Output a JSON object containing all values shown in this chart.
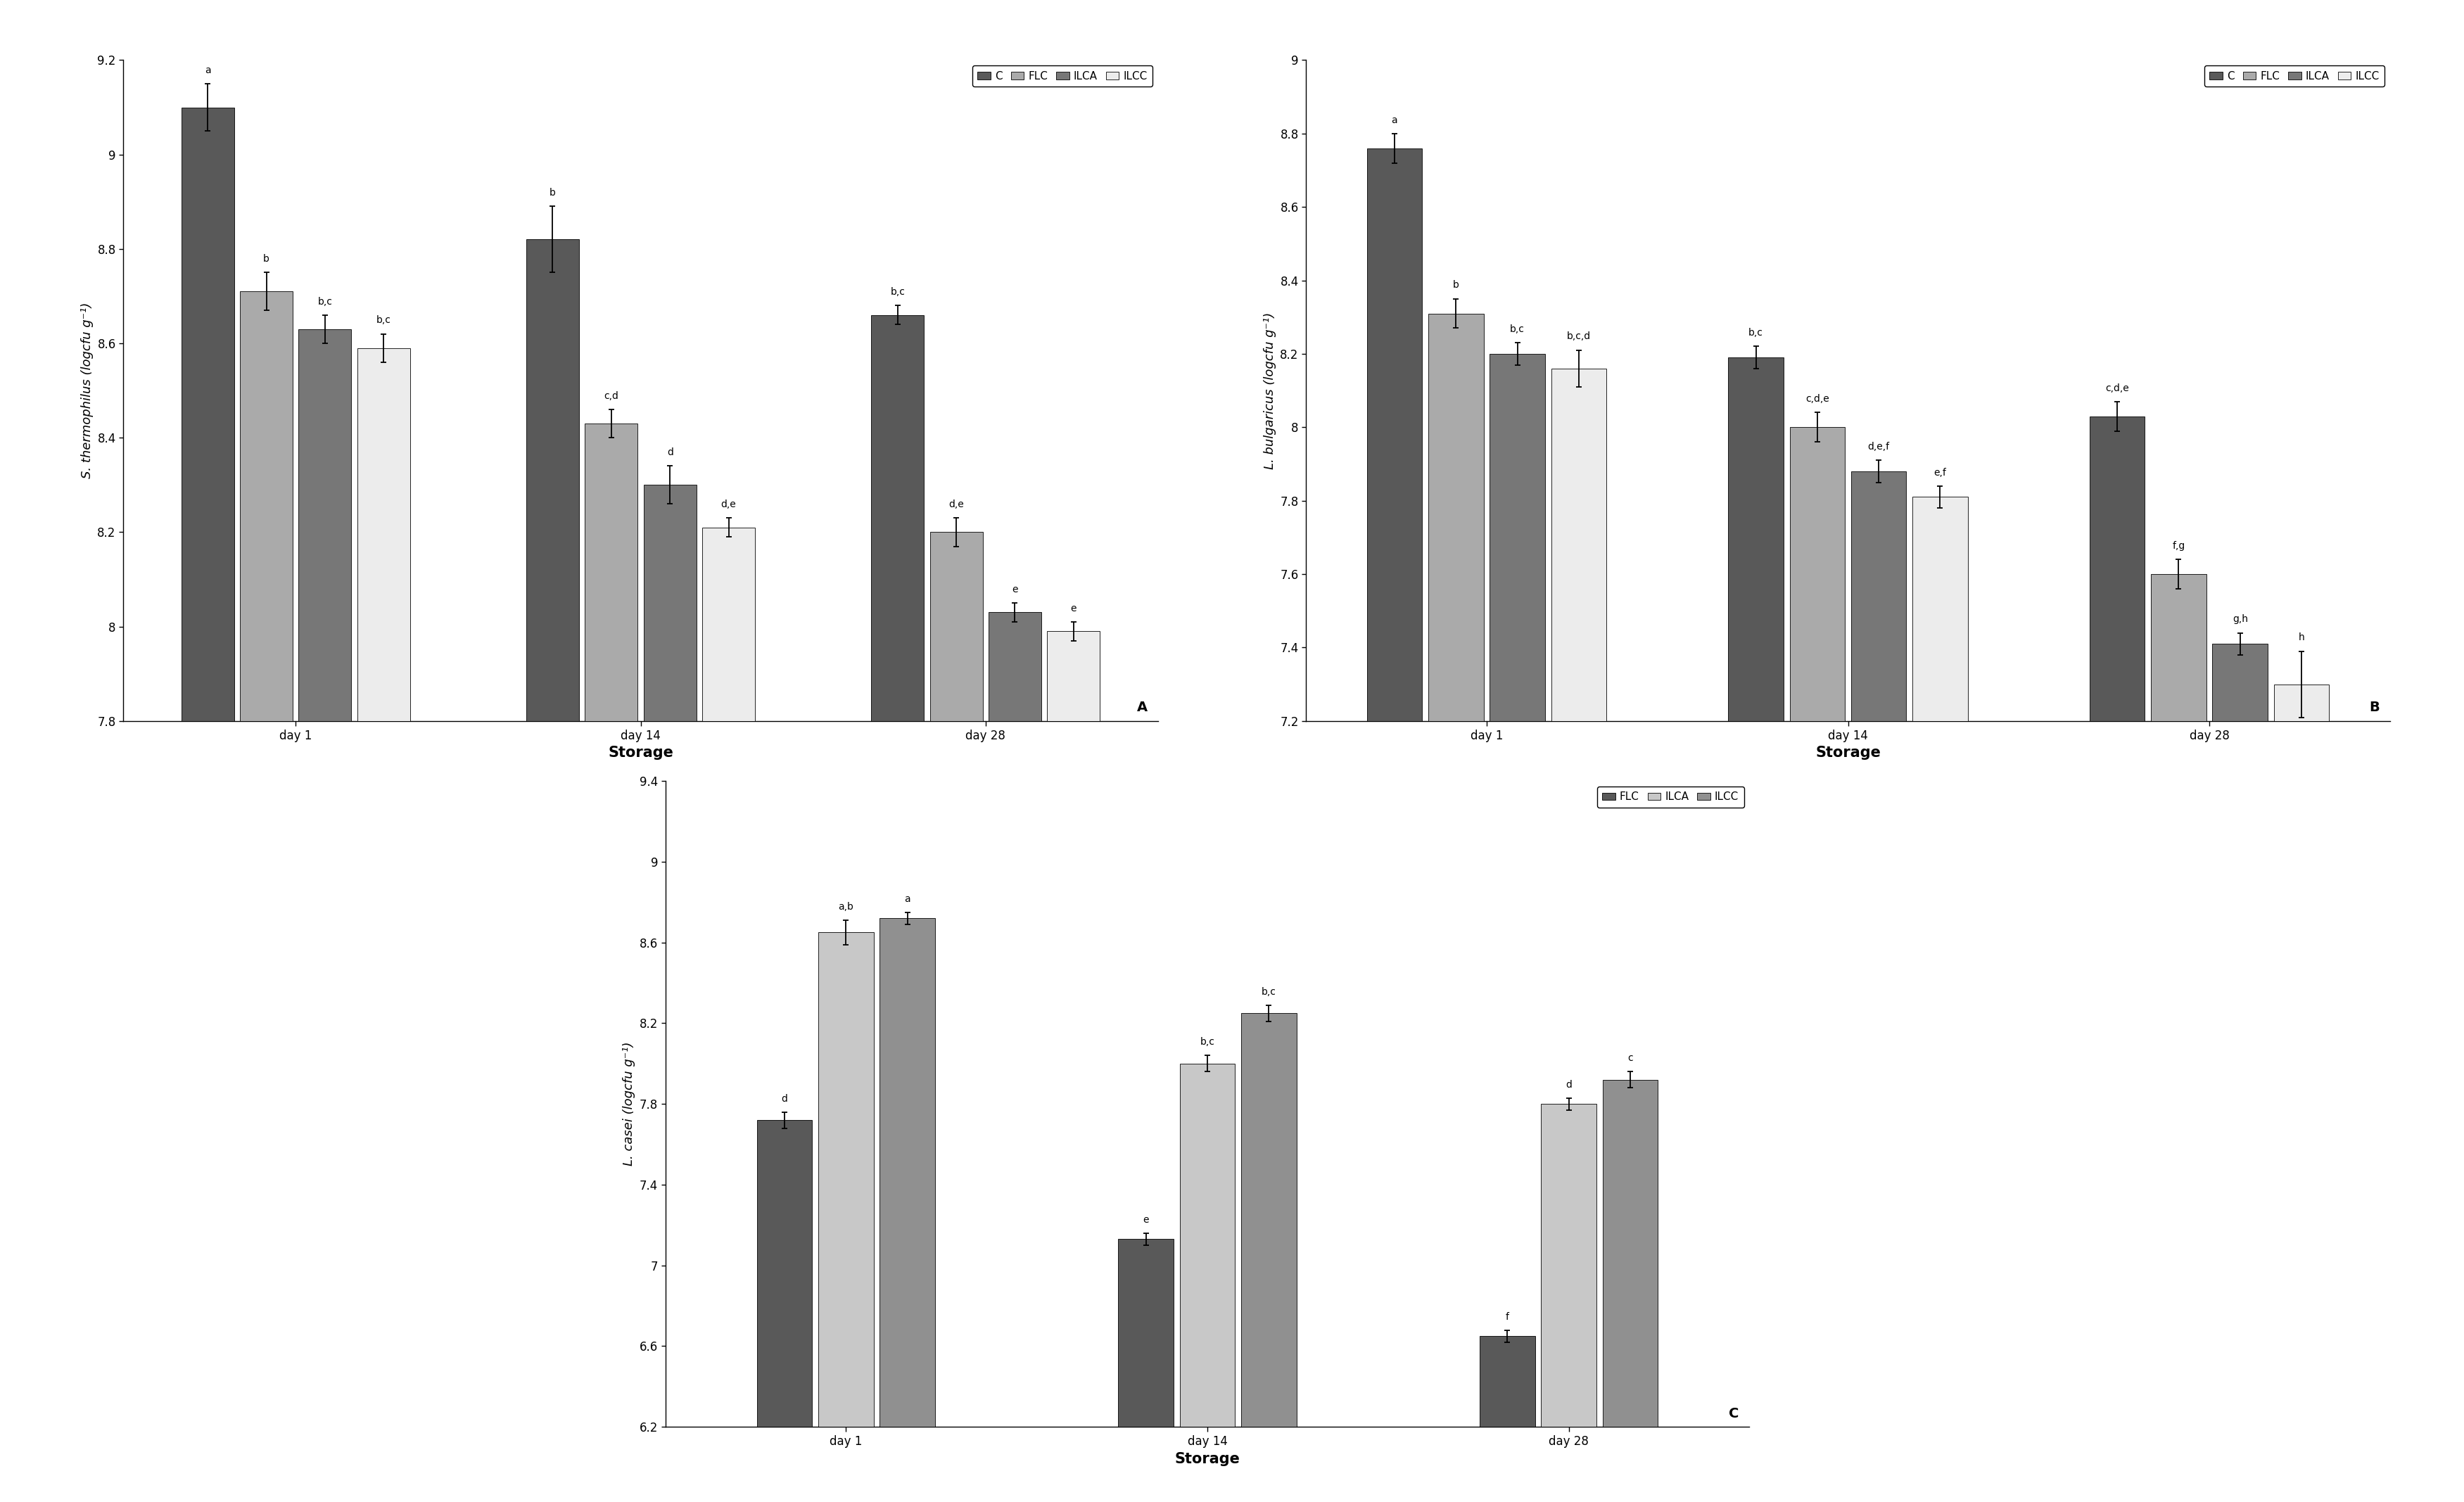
{
  "chart_A": {
    "ylabel": "S. thermophilus (logcfu g⁻¹)",
    "xlabel": "Storage",
    "ylim": [
      7.8,
      9.2
    ],
    "yticks": [
      7.8,
      8.0,
      8.2,
      8.4,
      8.6,
      8.8,
      9.0,
      9.2
    ],
    "days": [
      "day 1",
      "day 14",
      "day 28"
    ],
    "series_order": [
      "C",
      "FLC",
      "ILCA",
      "ILCC"
    ],
    "series": {
      "C": {
        "values": [
          9.1,
          8.82,
          8.66
        ],
        "errors": [
          0.05,
          0.07,
          0.02
        ],
        "color": "#595959"
      },
      "FLC": {
        "values": [
          8.71,
          8.43,
          8.2
        ],
        "errors": [
          0.04,
          0.03,
          0.03
        ],
        "color": "#aaaaaa"
      },
      "ILCA": {
        "values": [
          8.63,
          8.3,
          8.03
        ],
        "errors": [
          0.03,
          0.04,
          0.02
        ],
        "color": "#777777"
      },
      "ILCC": {
        "values": [
          8.59,
          8.21,
          7.99
        ],
        "errors": [
          0.03,
          0.02,
          0.02
        ],
        "color": "#ececec"
      }
    },
    "annotations": {
      "C": [
        "a",
        "b",
        "b,c"
      ],
      "FLC": [
        "b",
        "c,d",
        "d,e"
      ],
      "ILCA": [
        "b,c",
        "d",
        "e"
      ],
      "ILCC": [
        "b,c",
        "d,e",
        "e"
      ]
    },
    "label": "A"
  },
  "chart_B": {
    "ylabel": "L. bulgaricus (logcfu g⁻¹)",
    "xlabel": "Storage",
    "ylim": [
      7.2,
      9.0
    ],
    "yticks": [
      7.2,
      7.4,
      7.6,
      7.8,
      8.0,
      8.2,
      8.4,
      8.6,
      8.8,
      9.0
    ],
    "days": [
      "day 1",
      "day 14",
      "day 28"
    ],
    "series_order": [
      "C",
      "FLC",
      "ILCA",
      "ILCC"
    ],
    "series": {
      "C": {
        "values": [
          8.76,
          8.19,
          8.03
        ],
        "errors": [
          0.04,
          0.03,
          0.04
        ],
        "color": "#595959"
      },
      "FLC": {
        "values": [
          8.31,
          8.0,
          7.6
        ],
        "errors": [
          0.04,
          0.04,
          0.04
        ],
        "color": "#aaaaaa"
      },
      "ILCA": {
        "values": [
          8.2,
          7.88,
          7.41
        ],
        "errors": [
          0.03,
          0.03,
          0.03
        ],
        "color": "#777777"
      },
      "ILCC": {
        "values": [
          8.16,
          7.81,
          7.3
        ],
        "errors": [
          0.05,
          0.03,
          0.09
        ],
        "color": "#ececec"
      }
    },
    "annotations": {
      "C": [
        "a",
        "b,c",
        "c,d,e"
      ],
      "FLC": [
        "b",
        "c,d,e",
        "f,g"
      ],
      "ILCA": [
        "b,c",
        "d,e,f",
        "g,h"
      ],
      "ILCC": [
        "b,c,d",
        "e,f",
        "h"
      ]
    },
    "label": "B"
  },
  "chart_C": {
    "ylabel": "L. casei (logcfu g⁻¹)",
    "xlabel": "Storage",
    "ylim": [
      6.2,
      9.4
    ],
    "yticks": [
      6.2,
      6.6,
      7.0,
      7.4,
      7.8,
      8.2,
      8.6,
      9.0,
      9.4
    ],
    "days": [
      "day 1",
      "day 14",
      "day 28"
    ],
    "series_order": [
      "FLC",
      "ILCA",
      "ILCC"
    ],
    "series": {
      "FLC": {
        "values": [
          7.72,
          7.13,
          6.65
        ],
        "errors": [
          0.04,
          0.03,
          0.03
        ],
        "color": "#595959"
      },
      "ILCA": {
        "values": [
          8.65,
          8.0,
          7.8
        ],
        "errors": [
          0.06,
          0.04,
          0.03
        ],
        "color": "#c8c8c8"
      },
      "ILCC": {
        "values": [
          8.72,
          8.25,
          7.92
        ],
        "errors": [
          0.03,
          0.04,
          0.04
        ],
        "color": "#909090"
      }
    },
    "annotations": {
      "FLC": [
        "d",
        "e",
        "f"
      ],
      "ILCA": [
        "a,b",
        "b,c",
        "d"
      ],
      "ILCC": [
        "a",
        "b,c",
        "c"
      ]
    },
    "label": "C"
  },
  "bar_width": 0.17,
  "annot_fontsize": 10,
  "tick_fontsize": 12,
  "xlabel_fontsize": 15,
  "ylabel_fontsize": 13,
  "legend_fontsize": 11,
  "label_fontsize": 14,
  "figure_bg": "#ffffff"
}
